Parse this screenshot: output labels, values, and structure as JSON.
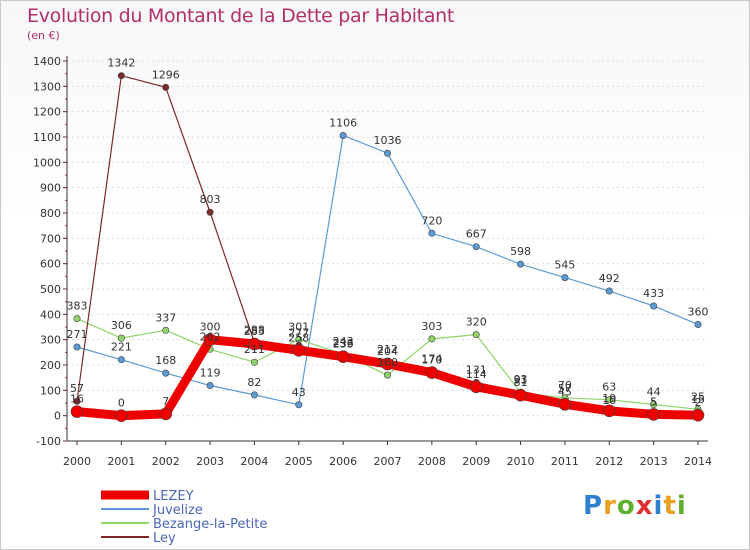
{
  "title": "Evolution du Montant de la Dette par Habitant",
  "subtitle": "(en €)",
  "brand": "Proxiti",
  "colors": {
    "title": "#b0306a",
    "LEZEY": "#ee0000",
    "Juvelize": "#5a9bd4",
    "Bezange-la-Petite": "#8fd46a",
    "Ley": "#7a2a2a",
    "axis": "#333333",
    "grid": "#dddddd"
  },
  "chart_data": {
    "type": "line",
    "x": [
      "2000",
      "2001",
      "2002",
      "2003",
      "2004",
      "2005",
      "2006",
      "2007",
      "2008",
      "2009",
      "2010",
      "2011",
      "2012",
      "2013",
      "2014"
    ],
    "ylim": [
      -100,
      1400
    ],
    "yticks": [
      -100,
      0,
      100,
      200,
      300,
      400,
      500,
      600,
      700,
      800,
      900,
      1000,
      1100,
      1200,
      1300,
      1400
    ],
    "legend_position": "bottom-left",
    "series": [
      {
        "name": "LEZEY",
        "values": [
          16,
          0,
          7,
          300,
          283,
          258,
          233,
          204,
          170,
          114,
          81,
          45,
          19,
          5,
          2
        ]
      },
      {
        "name": "Juvelize",
        "values": [
          271,
          221,
          168,
          119,
          82,
          43,
          1106,
          1036,
          720,
          667,
          598,
          545,
          492,
          433,
          360
        ]
      },
      {
        "name": "Bezange-la-Petite",
        "values": [
          383,
          306,
          337,
          262,
          211,
          301,
          243,
          160,
          303,
          320,
          91,
          70,
          63,
          44,
          25
        ]
      },
      {
        "name": "Ley",
        "values": [
          57,
          1342,
          1296,
          803,
          288,
          277,
          236,
          212,
          174,
          131,
          93,
          57,
          10,
          5,
          15
        ]
      }
    ]
  }
}
